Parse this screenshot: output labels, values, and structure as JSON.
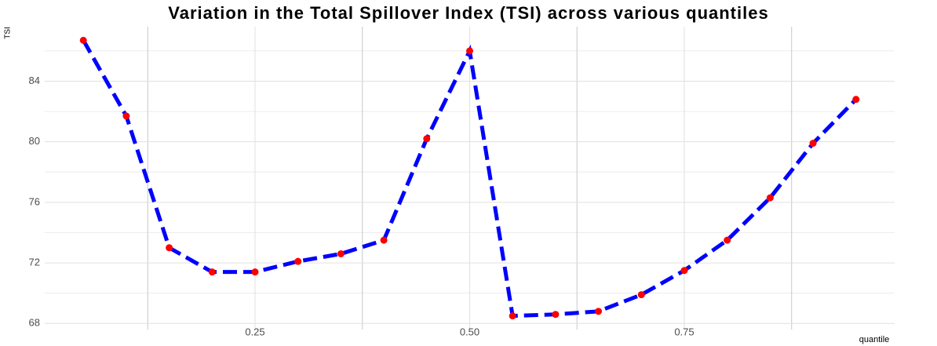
{
  "chart_data": {
    "type": "line",
    "title": "Variation in the Total Spillover Index (TSI) across various quantiles",
    "x_label": "quantile",
    "y_label": "TSI",
    "x": [
      0.05,
      0.1,
      0.15,
      0.2,
      0.25,
      0.3,
      0.35,
      0.4,
      0.45,
      0.5,
      0.55,
      0.6,
      0.65,
      0.7,
      0.75,
      0.8,
      0.85,
      0.9,
      0.95
    ],
    "series": [
      {
        "name": "TSI",
        "color": "#0000ff",
        "point_color": "#ff0000",
        "values": [
          86.7,
          81.7,
          73.0,
          71.4,
          71.4,
          72.1,
          72.6,
          73.5,
          80.2,
          86.0,
          68.5,
          68.6,
          68.8,
          69.9,
          71.5,
          73.5,
          76.3,
          79.9,
          82.8
        ]
      }
    ],
    "xlim": [
      0.005,
      0.995
    ],
    "ylim": [
      67.6,
      87.6
    ],
    "xticks": [
      0.25,
      {
        "value": 0.5,
        "label": "0.50"
      },
      0.75
    ],
    "yticks": [
      68,
      72,
      76,
      80,
      84
    ],
    "x_minor_grid": [
      0.125,
      0.375,
      0.625,
      0.875
    ],
    "y_minor_grid": [
      70,
      74,
      78,
      82,
      86
    ],
    "grid": true
  }
}
